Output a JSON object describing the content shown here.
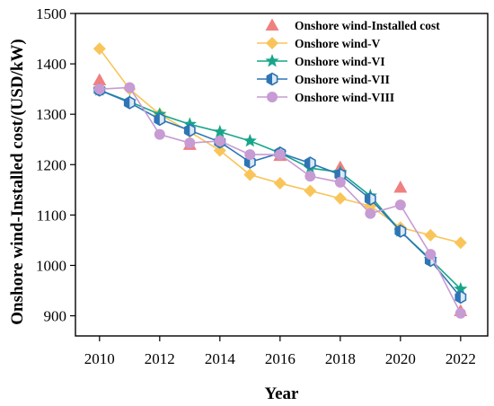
{
  "chart_data": {
    "type": "line",
    "xlabel": "Year",
    "ylabel": "Onshore wind-Installed cost/(USD/kW)",
    "xlim": [
      2009.2,
      2022.9
    ],
    "ylim": [
      860,
      1500
    ],
    "xticks": [
      2010,
      2012,
      2014,
      2016,
      2018,
      2020,
      2022
    ],
    "yticks": [
      900,
      1000,
      1100,
      1200,
      1300,
      1400,
      1500
    ],
    "grid": false,
    "legend_position": "top-right",
    "series": [
      {
        "name": "Onshore wind-Installed cost",
        "marker": "triangle",
        "line": false,
        "color": "#f08080",
        "x": [
          2010,
          2013,
          2016,
          2018,
          2020,
          2022
        ],
        "y": [
          1368,
          1240,
          1218,
          1195,
          1155,
          910
        ]
      },
      {
        "name": "Onshore wind-V",
        "marker": "diamond",
        "line": true,
        "color": "#f9c55a",
        "x": [
          2010,
          2011,
          2012,
          2013,
          2014,
          2015,
          2016,
          2017,
          2018,
          2019,
          2020,
          2021,
          2022
        ],
        "y": [
          1430,
          1350,
          1300,
          1265,
          1228,
          1180,
          1163,
          1148,
          1133,
          1118,
          1075,
          1060,
          1045
        ]
      },
      {
        "name": "Onshore wind-VI",
        "marker": "star",
        "line": true,
        "color": "#17a589",
        "x": [
          2010,
          2011,
          2012,
          2013,
          2014,
          2015,
          2016,
          2017,
          2018,
          2019,
          2020,
          2021,
          2022
        ],
        "y": [
          1348,
          1325,
          1300,
          1280,
          1265,
          1247,
          1223,
          1193,
          1185,
          1138,
          1068,
          1012,
          953
        ]
      },
      {
        "name": "Onshore wind-VII",
        "marker": "half-hexagon",
        "line": true,
        "color": "#2e75b6",
        "x": [
          2010,
          2011,
          2012,
          2013,
          2014,
          2015,
          2016,
          2017,
          2018,
          2019,
          2020,
          2021,
          2022
        ],
        "y": [
          1348,
          1323,
          1290,
          1268,
          1245,
          1205,
          1223,
          1203,
          1180,
          1132,
          1068,
          1010,
          937
        ]
      },
      {
        "name": "Onshore wind-VIII",
        "marker": "circle",
        "line": true,
        "color": "#c79bd3",
        "x": [
          2010,
          2011,
          2012,
          2013,
          2014,
          2015,
          2016,
          2017,
          2018,
          2019,
          2020,
          2021,
          2022
        ],
        "y": [
          1350,
          1353,
          1260,
          1243,
          1247,
          1220,
          1220,
          1177,
          1165,
          1103,
          1120,
          1022,
          905
        ]
      }
    ]
  }
}
